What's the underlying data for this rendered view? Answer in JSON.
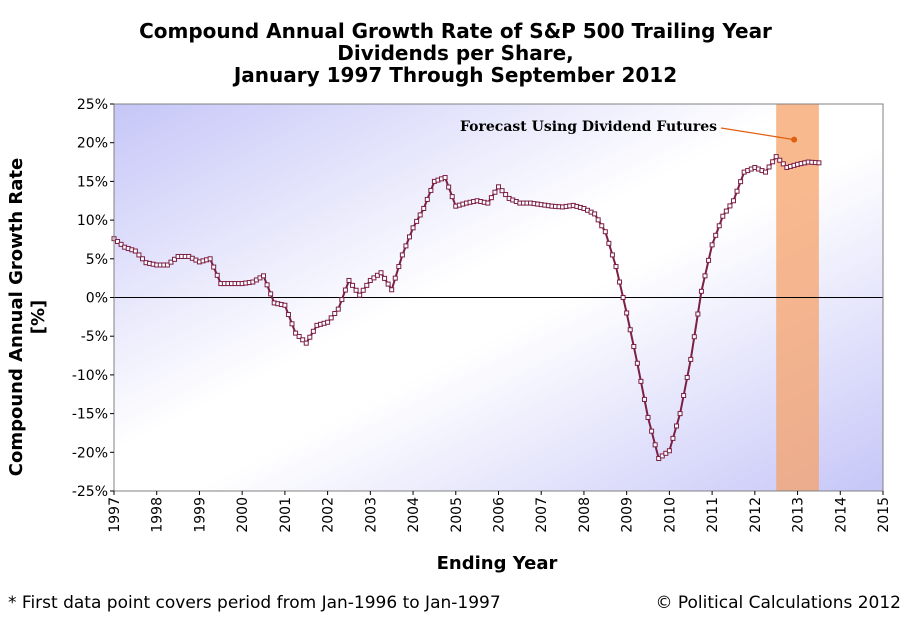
{
  "chart_data": {
    "type": "line",
    "title_lines": [
      "Compound Annual Growth Rate of S&P 500 Trailing Year",
      "Dividends per Share,",
      "January 1997 Through September 2012"
    ],
    "xlabel": "Ending Year",
    "ylabel_lines": [
      "Compound Annual Growth Rate",
      "[%]"
    ],
    "xlim": [
      1997,
      2015
    ],
    "ylim": [
      -25,
      25
    ],
    "x_ticks": [
      "1997",
      "1998",
      "1999",
      "2000",
      "2001",
      "2002",
      "2003",
      "2004",
      "2005",
      "2006",
      "2007",
      "2008",
      "2009",
      "2010",
      "2011",
      "2012",
      "2013",
      "2014",
      "2015"
    ],
    "y_ticks": [
      "25%",
      "20%",
      "15%",
      "10%",
      "5%",
      "0%",
      "-5%",
      "-10%",
      "-15%",
      "-20%",
      "-25%"
    ],
    "zero_line": true,
    "forecast_band": {
      "x_start": 2012.5,
      "x_end": 2013.5,
      "color": "#f5a26a"
    },
    "annotation": {
      "text": "Forecast Using Dividend Futures",
      "point": [
        2012.92,
        20.4
      ],
      "color": "#e06010"
    },
    "series": [
      {
        "color": "#7b1f45",
        "marker": "square-outline",
        "points": [
          [
            1997.0,
            7.6
          ],
          [
            1997.25,
            6.5
          ],
          [
            1997.5,
            6.0
          ],
          [
            1997.75,
            4.5
          ],
          [
            1998.0,
            4.2
          ],
          [
            1998.25,
            4.2
          ],
          [
            1998.5,
            5.3
          ],
          [
            1998.75,
            5.3
          ],
          [
            1999.0,
            4.6
          ],
          [
            1999.25,
            5.0
          ],
          [
            1999.5,
            1.8
          ],
          [
            1999.75,
            1.8
          ],
          [
            2000.0,
            1.8
          ],
          [
            2000.25,
            2.0
          ],
          [
            2000.5,
            2.8
          ],
          [
            2000.75,
            -0.7
          ],
          [
            2001.0,
            -1.0
          ],
          [
            2001.25,
            -4.6
          ],
          [
            2001.5,
            -5.9
          ],
          [
            2001.75,
            -3.6
          ],
          [
            2002.0,
            -3.2
          ],
          [
            2002.25,
            -1.5
          ],
          [
            2002.5,
            2.2
          ],
          [
            2002.75,
            0.3
          ],
          [
            2003.0,
            2.2
          ],
          [
            2003.25,
            3.2
          ],
          [
            2003.5,
            1.0
          ],
          [
            2003.75,
            5.5
          ],
          [
            2004.0,
            9.0
          ],
          [
            2004.25,
            11.5
          ],
          [
            2004.5,
            15.0
          ],
          [
            2004.75,
            15.5
          ],
          [
            2005.0,
            11.8
          ],
          [
            2005.25,
            12.2
          ],
          [
            2005.5,
            12.5
          ],
          [
            2005.75,
            12.2
          ],
          [
            2006.0,
            14.3
          ],
          [
            2006.25,
            12.8
          ],
          [
            2006.5,
            12.2
          ],
          [
            2006.75,
            12.2
          ],
          [
            2007.0,
            12.0
          ],
          [
            2007.25,
            11.8
          ],
          [
            2007.5,
            11.7
          ],
          [
            2007.75,
            11.9
          ],
          [
            2008.0,
            11.5
          ],
          [
            2008.25,
            10.8
          ],
          [
            2008.5,
            8.5
          ],
          [
            2008.75,
            4.0
          ],
          [
            2009.0,
            -2.0
          ],
          [
            2009.25,
            -8.5
          ],
          [
            2009.5,
            -15.5
          ],
          [
            2009.75,
            -20.8
          ],
          [
            2010.0,
            -19.8
          ],
          [
            2010.25,
            -15.0
          ],
          [
            2010.5,
            -8.0
          ],
          [
            2010.75,
            0.8
          ],
          [
            2011.0,
            6.8
          ],
          [
            2011.25,
            10.5
          ],
          [
            2011.5,
            12.5
          ],
          [
            2011.75,
            16.2
          ],
          [
            2012.0,
            16.8
          ],
          [
            2012.25,
            16.2
          ],
          [
            2012.5,
            18.2
          ],
          [
            2012.75,
            16.8
          ],
          [
            2013.0,
            17.2
          ],
          [
            2013.25,
            17.5
          ],
          [
            2013.5,
            17.4
          ]
        ]
      }
    ]
  },
  "footnote": "* First data point covers period from Jan-1996 to Jan-1997",
  "credit": "© Political Calculations 2012"
}
